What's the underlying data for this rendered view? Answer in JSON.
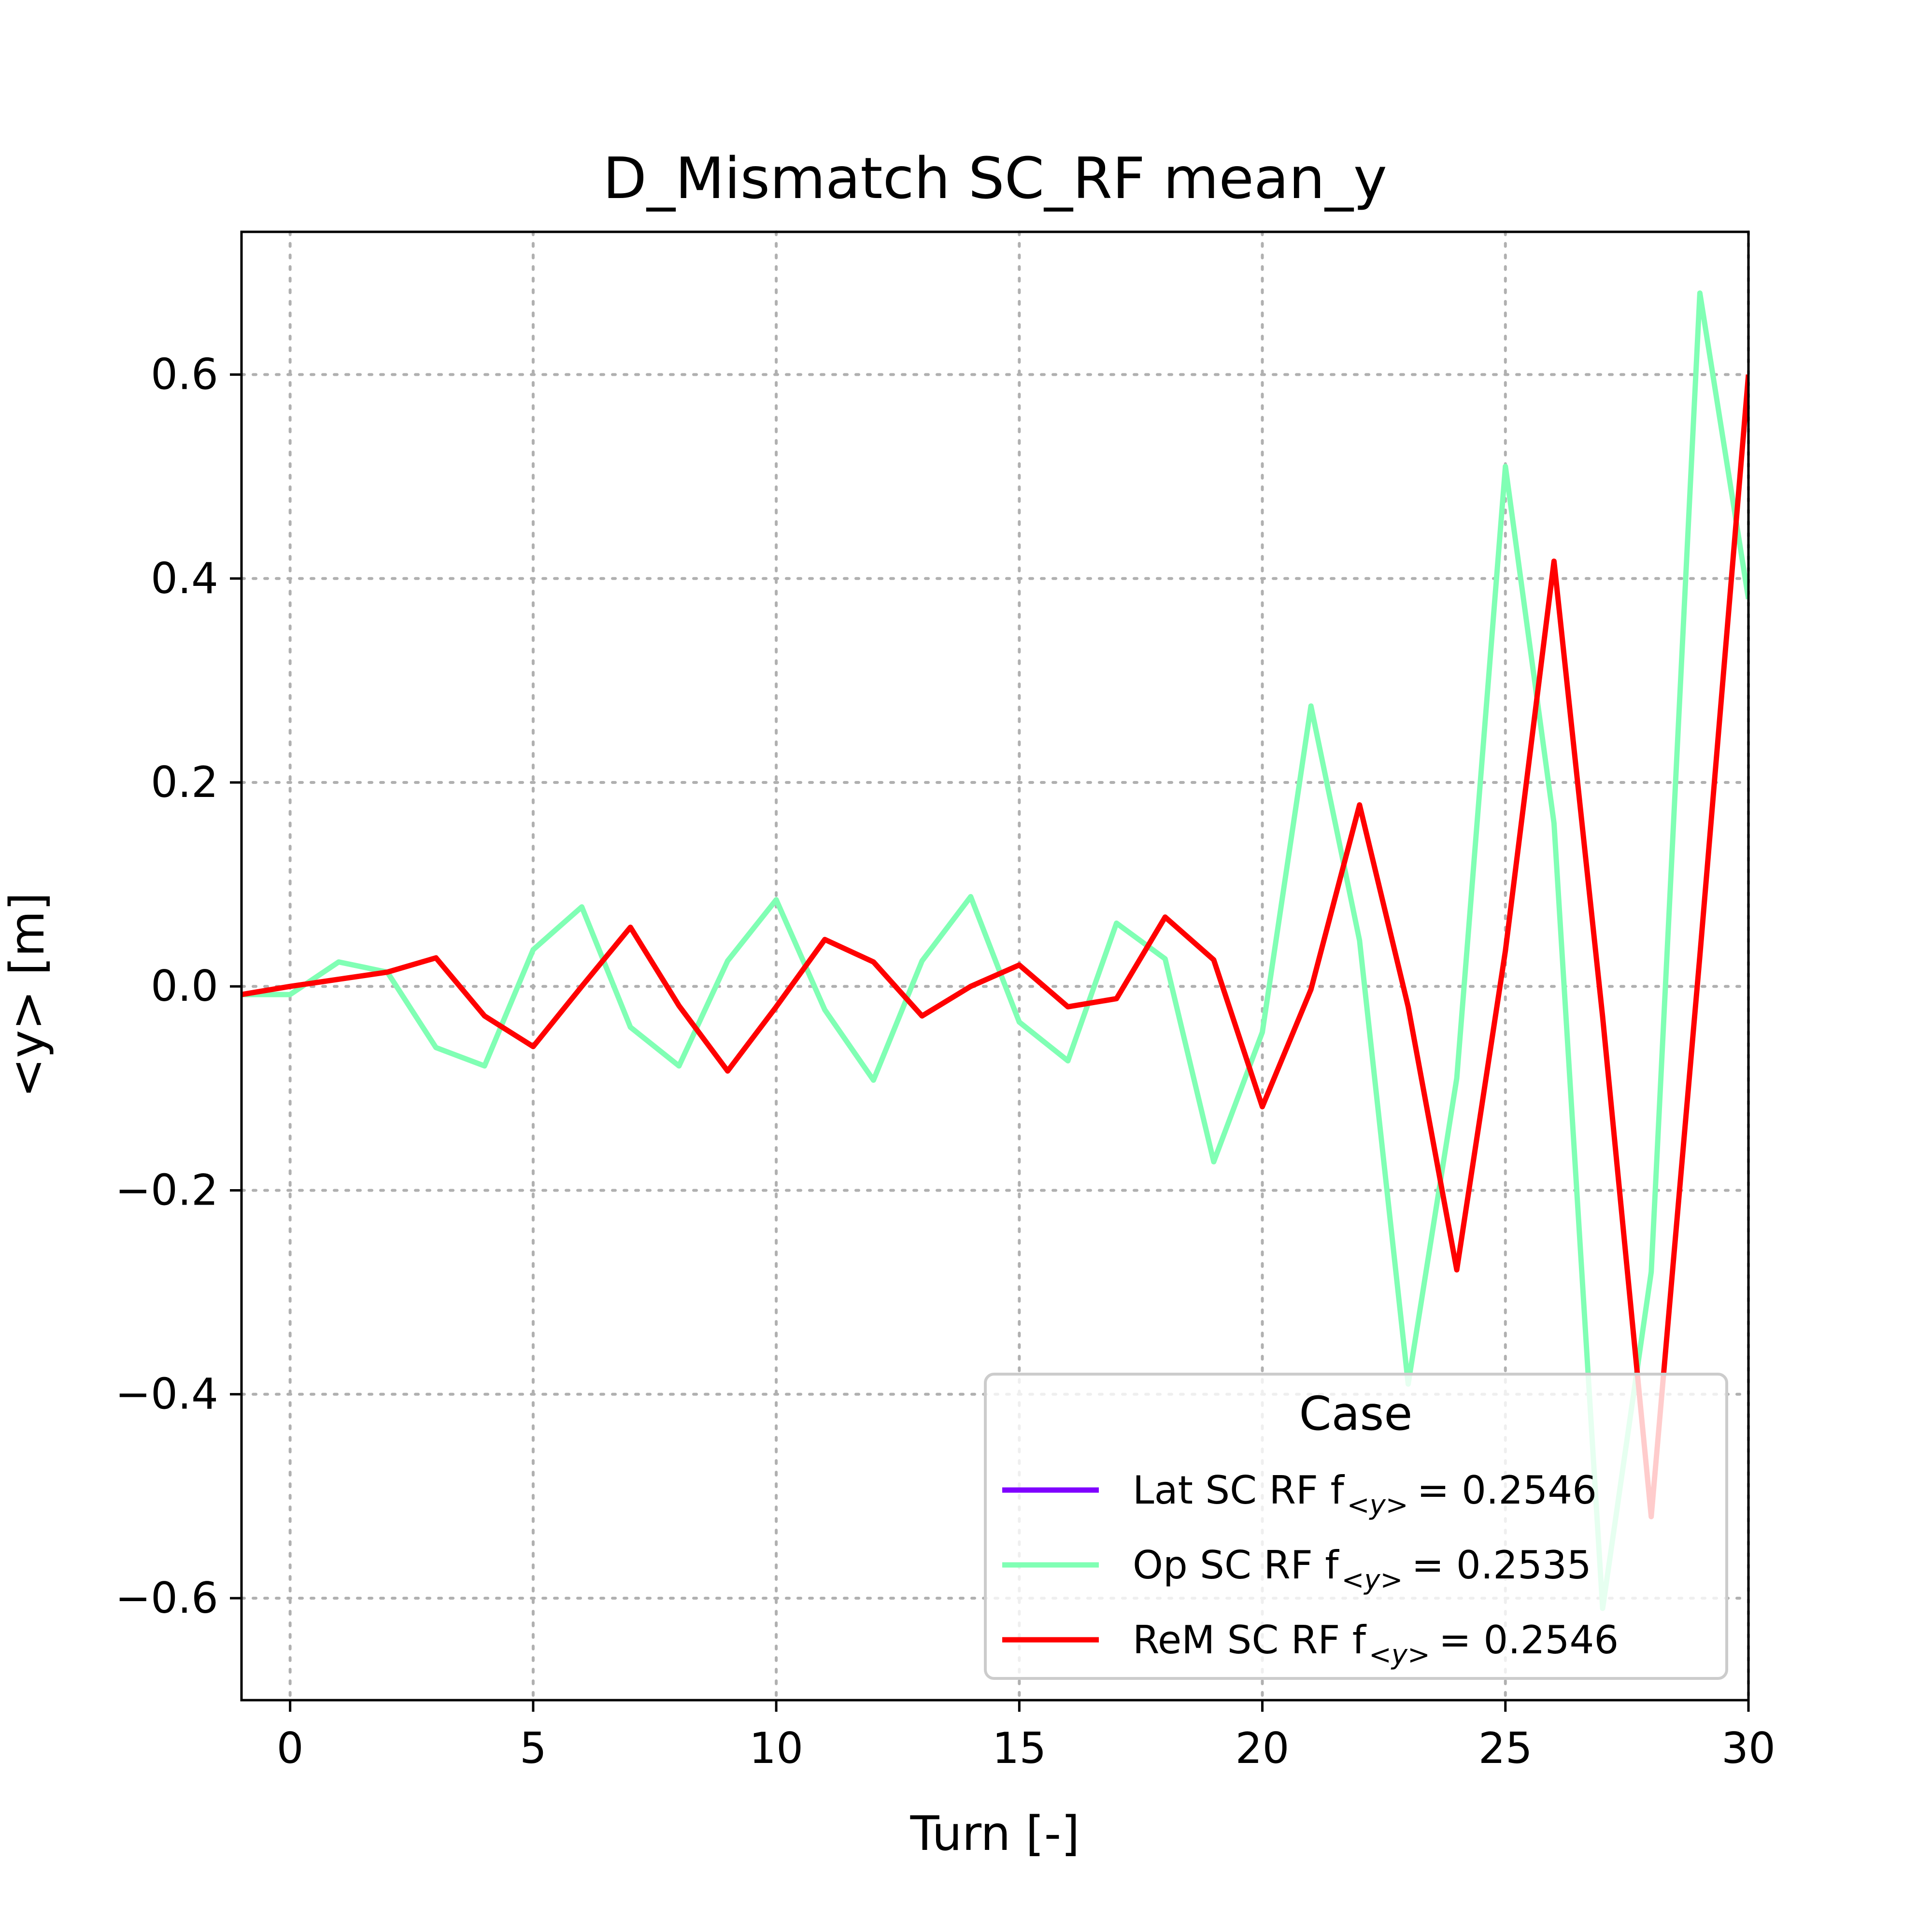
{
  "chart_data": {
    "type": "line",
    "title": "D_Mismatch SC_RF mean_y",
    "xlabel": "Turn [-]",
    "ylabel": "<y> [m]",
    "xlim": [
      -1,
      30
    ],
    "ylim": [
      -0.7,
      0.74
    ],
    "xticks": [
      0,
      5,
      10,
      15,
      20,
      25,
      30
    ],
    "xtick_labels": [
      "0",
      "5",
      "10",
      "15",
      "20",
      "25",
      "30"
    ],
    "yticks": [
      -0.6,
      -0.4,
      -0.2,
      0.0,
      0.2,
      0.4,
      0.6
    ],
    "ytick_labels": [
      "−0.6",
      "−0.4",
      "−0.2",
      "0.0",
      "0.2",
      "0.4",
      "0.6"
    ],
    "grid": true,
    "legend": {
      "title": "Case",
      "placement": "lower-right",
      "entries": [
        {
          "label": "Lat SC RF f",
          "subscript": "<y>",
          "value_text": "= 0.2546"
        },
        {
          "label": "Op SC RF f",
          "subscript": "<y>",
          "value_text": "= 0.2535"
        },
        {
          "label": "ReM SC RF f",
          "subscript": "<y>",
          "value_text": "= 0.2546"
        }
      ]
    },
    "series": [
      {
        "name": "Lat SC RF",
        "color": "#7f00ff",
        "x": [],
        "y": []
      },
      {
        "name": "Op SC RF",
        "color": "#80ffb4",
        "x": [
          -1,
          0,
          1,
          2,
          3,
          4,
          5,
          6,
          7,
          8,
          9,
          10,
          11,
          12,
          13,
          14,
          15,
          16,
          17,
          18,
          19,
          20,
          21,
          22,
          23,
          24,
          25,
          26,
          27,
          28,
          29,
          30
        ],
        "y": [
          -0.008,
          -0.008,
          0.024,
          0.014,
          -0.06,
          -0.078,
          0.036,
          0.078,
          -0.04,
          -0.078,
          0.025,
          0.085,
          -0.023,
          -0.092,
          0.025,
          0.088,
          -0.035,
          -0.073,
          0.062,
          0.027,
          -0.172,
          -0.045,
          0.275,
          0.045,
          -0.39,
          -0.09,
          0.51,
          0.16,
          -0.61,
          -0.28,
          0.68,
          0.38
        ]
      },
      {
        "name": "ReM SC RF",
        "color": "#ff0000",
        "x": [
          -1,
          0,
          1,
          2,
          3,
          4,
          5,
          6,
          7,
          8,
          9,
          10,
          11,
          12,
          13,
          14,
          15,
          16,
          17,
          18,
          19,
          20,
          21,
          22,
          23,
          24,
          25,
          26,
          27,
          28,
          29,
          30
        ],
        "y": [
          -0.008,
          0.0,
          0.007,
          0.014,
          0.028,
          -0.029,
          -0.059,
          0.0,
          0.058,
          -0.019,
          -0.083,
          -0.02,
          0.046,
          0.024,
          -0.029,
          0.0,
          0.021,
          -0.02,
          -0.012,
          0.068,
          0.026,
          -0.118,
          -0.003,
          0.178,
          -0.02,
          -0.278,
          0.035,
          0.417,
          -0.03,
          -0.52,
          0.03,
          0.6
        ]
      }
    ]
  }
}
